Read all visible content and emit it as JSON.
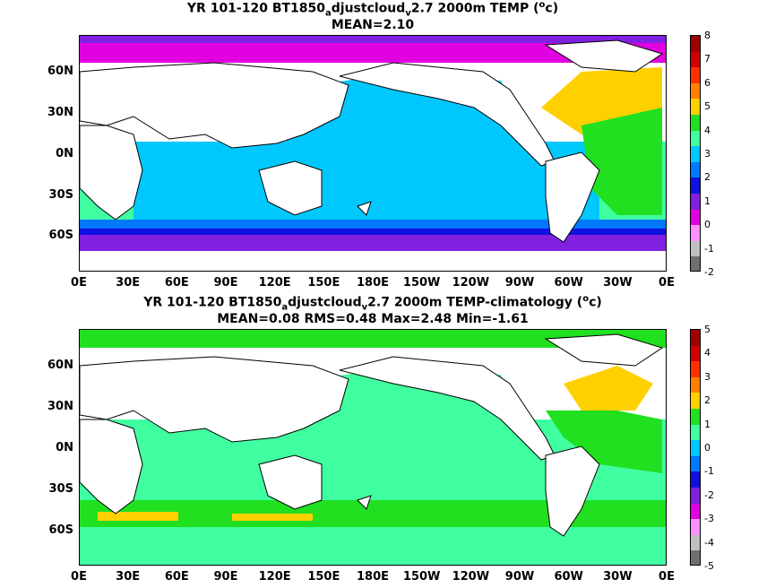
{
  "panels": [
    {
      "title_parts": [
        "YR 101-120 BT1850",
        "a",
        "djustcloud",
        "v",
        "2.7 2000m TEMP (",
        "o",
        "c)"
      ],
      "stats": "MEAN=2.10",
      "colorbar": {
        "labels": [
          "8",
          "7",
          "6",
          "5",
          "4",
          "3",
          "2",
          "1",
          "0",
          "-1",
          "-2"
        ],
        "colors": [
          "#a00000",
          "#d00000",
          "#ff3000",
          "#ff8000",
          "#ffd000",
          "#20e020",
          "#40ffa0",
          "#00c8ff",
          "#0078ff",
          "#1010e0",
          "#8020e0",
          "#e000e0",
          "#ff90ff",
          "#c0c0c0",
          "#707070"
        ]
      }
    },
    {
      "title_parts": [
        "YR 101-120 BT1850",
        "a",
        "djustcloud",
        "v",
        "2.7 2000m TEMP-climatology (",
        "o",
        "c)"
      ],
      "stats": "MEAN=0.08   RMS=0.48   Max=2.48   Min=-1.61",
      "colorbar": {
        "labels": [
          "5",
          "4",
          "3",
          "2",
          "1",
          "0",
          "-1",
          "-2",
          "-3",
          "-4",
          "-5"
        ],
        "colors": [
          "#a00000",
          "#d00000",
          "#ff3000",
          "#ff8000",
          "#ffd000",
          "#20e020",
          "#40ffa0",
          "#00c8ff",
          "#0078ff",
          "#1010e0",
          "#8020e0",
          "#e000e0",
          "#ff90ff",
          "#c0c0c0",
          "#707070"
        ]
      }
    }
  ],
  "x_ticks": [
    "0E",
    "30E",
    "60E",
    "90E",
    "120E",
    "150E",
    "180E",
    "150W",
    "120W",
    "90W",
    "60W",
    "30W",
    "0E"
  ],
  "y_ticks": [
    "60N",
    "30N",
    "0N",
    "30S",
    "60S"
  ],
  "colors": {
    "land": "#ffffff",
    "coast": "#000000"
  }
}
